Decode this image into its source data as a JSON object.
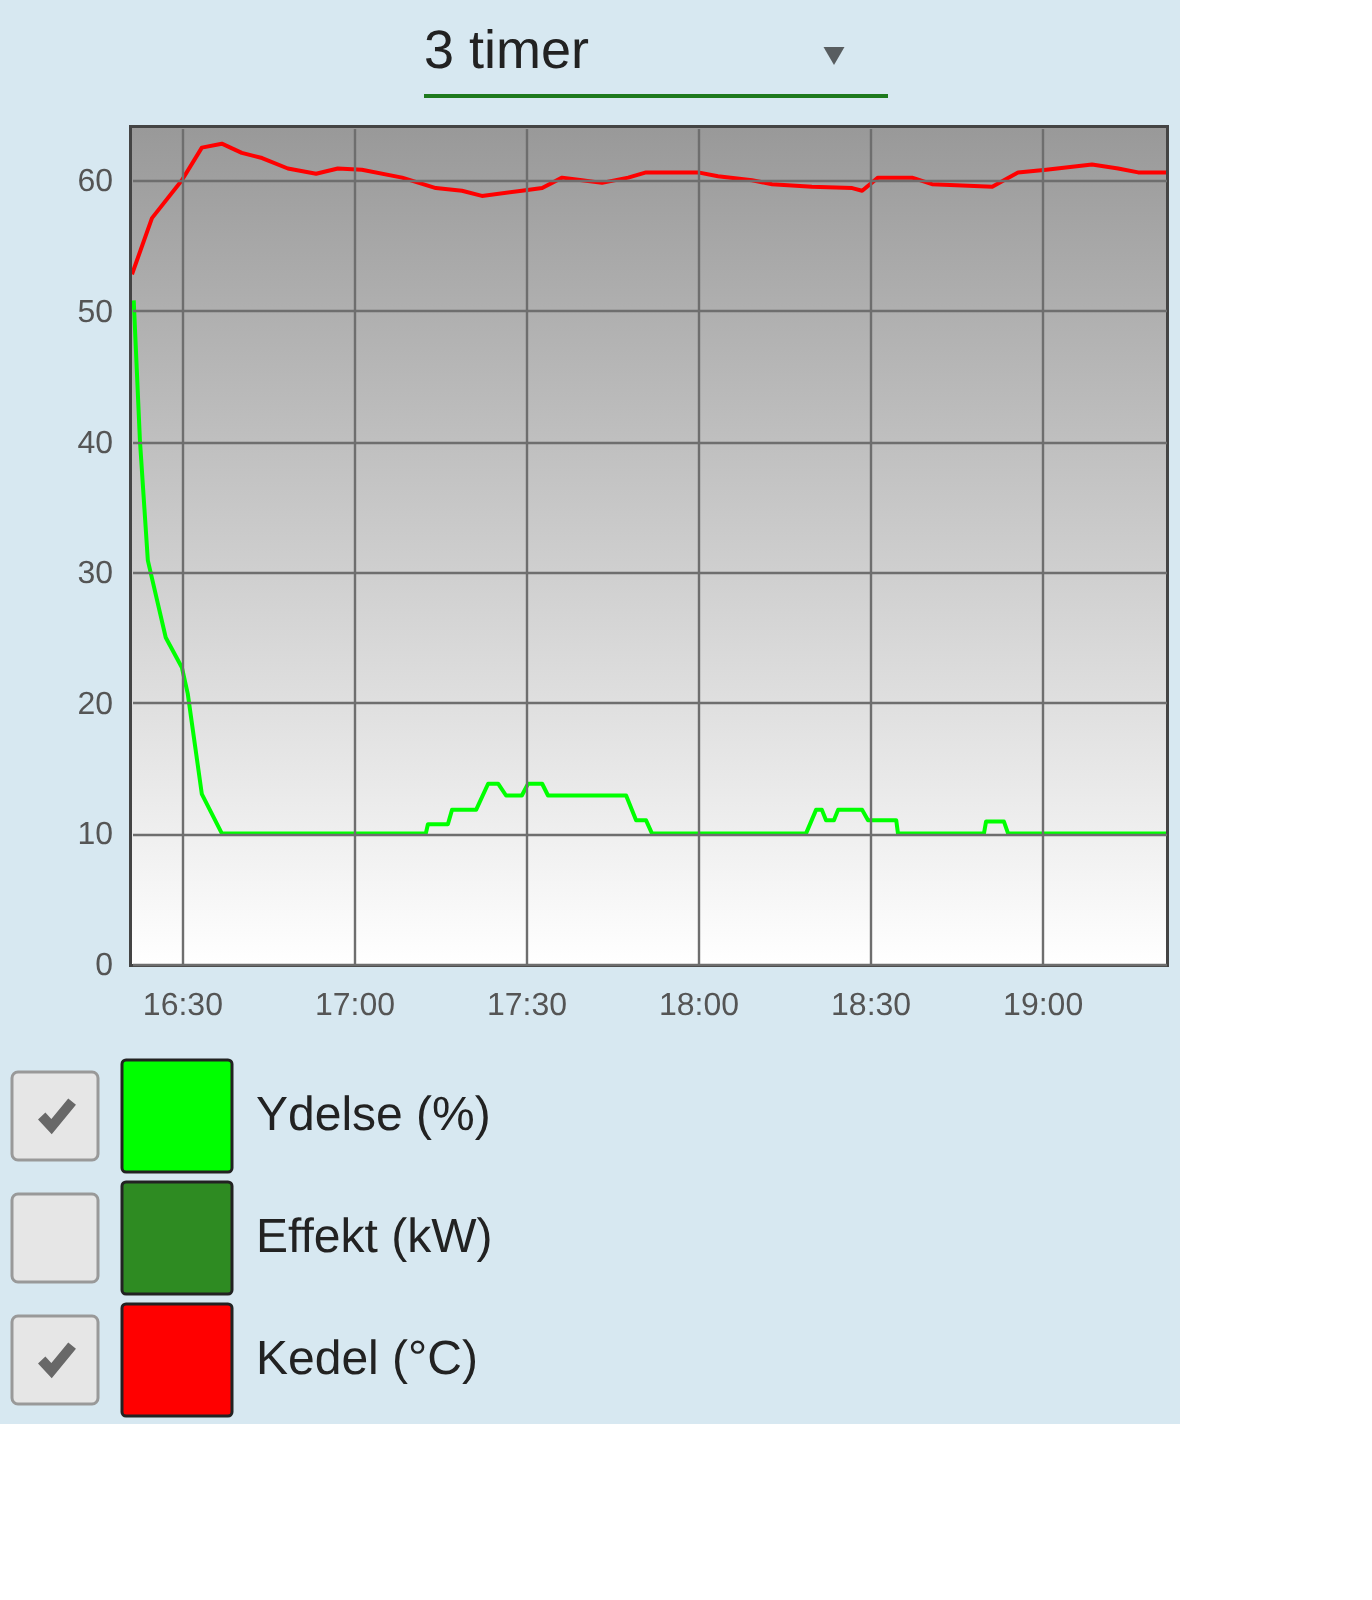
{
  "chart_data": {
    "type": "line",
    "annotations": [
      "3 timer"
    ],
    "xlim": [
      16.355,
      19.36
    ],
    "xticks": [
      {
        "value": 16.5,
        "label": "16:30"
      },
      {
        "value": 17,
        "label": "17:00"
      },
      {
        "value": 17.5,
        "label": "17:30"
      },
      {
        "value": 18,
        "label": "18:00"
      },
      {
        "value": 18.5,
        "label": "18:30"
      },
      {
        "value": 19,
        "label": "19:00"
      }
    ],
    "ylim": [
      0,
      64
    ],
    "yticks": [
      0,
      10,
      20,
      30,
      40,
      50,
      60
    ],
    "grid": true,
    "legend": "bottom",
    "series": [
      {
        "name": "Ydelse (%)",
        "color": "#00ff00",
        "x": [
          16.36,
          16.378,
          16.401,
          16.453,
          16.5,
          16.517,
          16.558,
          16.616,
          17.209,
          17.215,
          17.273,
          17.285,
          17.355,
          17.39,
          17.419,
          17.442,
          17.488,
          17.506,
          17.547,
          17.564,
          17.791,
          17.82,
          17.849,
          17.866,
          18.314,
          18.343,
          18.36,
          18.372,
          18.395,
          18.407,
          18.477,
          18.494,
          18.576,
          18.581,
          18.831,
          18.837,
          18.889,
          18.901,
          19.36
        ],
        "values": [
          50.8,
          40.1,
          30.9,
          25,
          22.7,
          20.7,
          13,
          10,
          10,
          10.7,
          10.7,
          11.8,
          11.8,
          13.8,
          13.8,
          12.9,
          12.9,
          13.8,
          13.8,
          12.9,
          12.9,
          11,
          11,
          10,
          10,
          11.8,
          11.8,
          11,
          11,
          11.8,
          11.8,
          11,
          11,
          10,
          10,
          10.9,
          10.9,
          10,
          10
        ]
      },
      {
        "name": "Effekt (kW)",
        "color": "#2e8b22"
      },
      {
        "name": "Kedel (°C)",
        "color": "#ff0000",
        "x": [
          16.355,
          16.413,
          16.5,
          16.558,
          16.616,
          16.674,
          16.733,
          16.808,
          16.89,
          16.953,
          17.023,
          17.14,
          17.238,
          17.314,
          17.372,
          17.488,
          17.547,
          17.605,
          17.663,
          17.721,
          17.797,
          17.849,
          18.0,
          18.058,
          18.157,
          18.215,
          18.331,
          18.448,
          18.477,
          18.523,
          18.622,
          18.68,
          18.855,
          18.93,
          19.012,
          19.145,
          19.221,
          19.279,
          19.36
        ],
        "values": [
          52.8,
          57.1,
          60,
          62.5,
          62.8,
          62.1,
          61.7,
          60.9,
          60.5,
          60.9,
          60.8,
          60.2,
          59.4,
          59.2,
          58.8,
          59.2,
          59.4,
          60.2,
          60,
          59.8,
          60.2,
          60.6,
          60.6,
          60.3,
          60,
          59.7,
          59.5,
          59.4,
          59.2,
          60.2,
          60.2,
          59.7,
          59.5,
          60.6,
          60.8,
          61.2,
          60.9,
          60.6,
          60.6
        ]
      }
    ]
  }
}
